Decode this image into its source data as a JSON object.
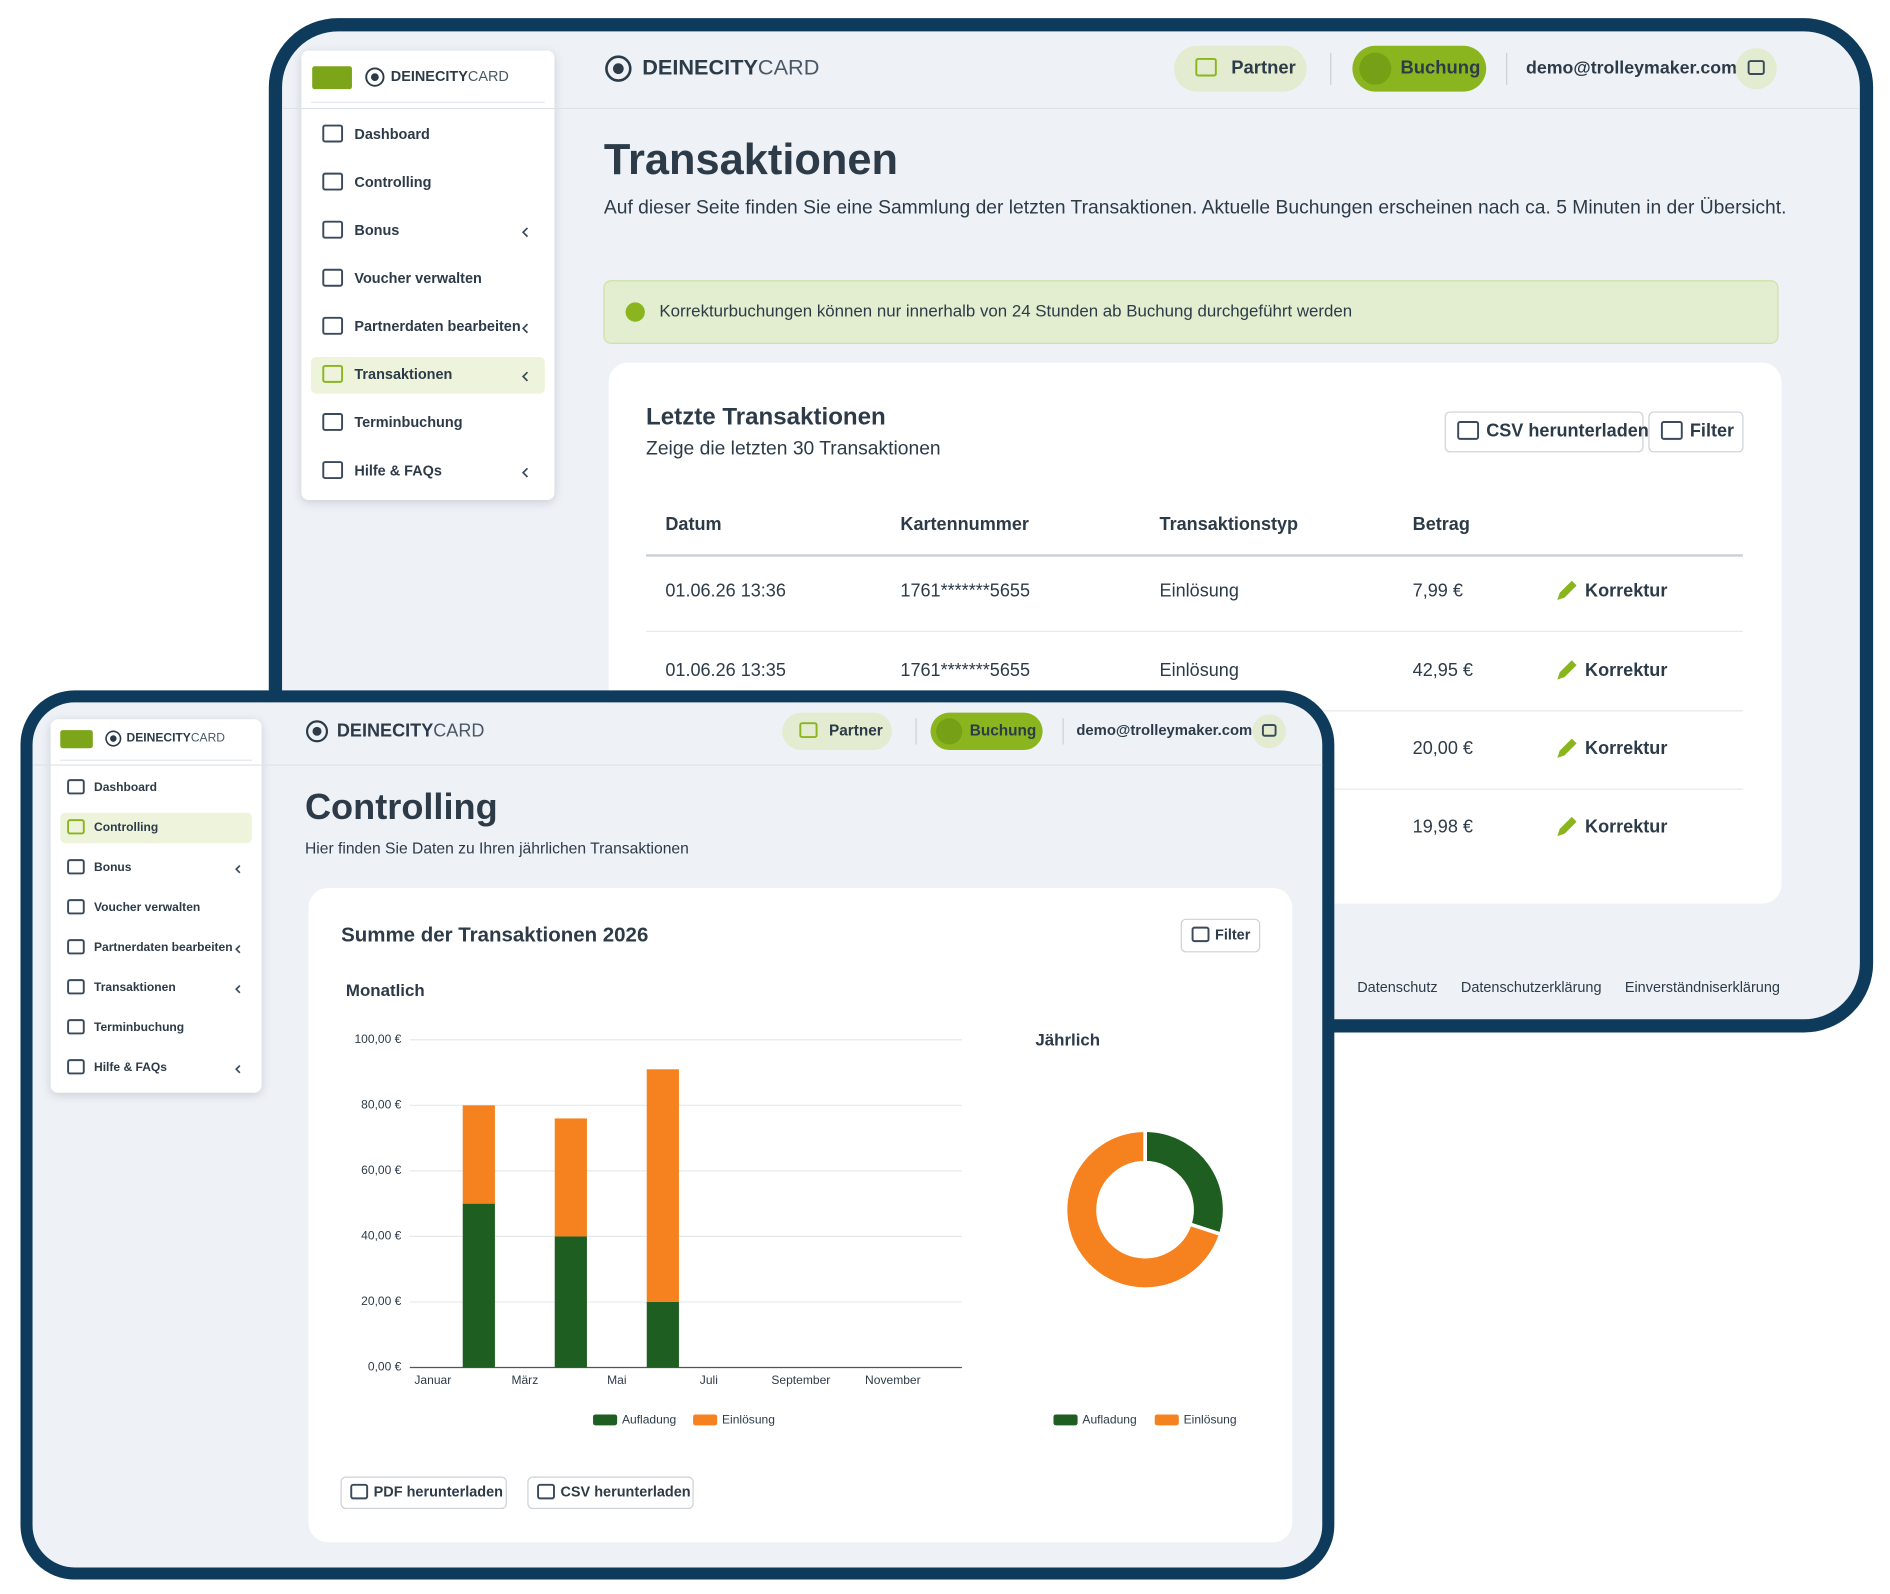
{
  "back": {
    "sidebar": {
      "brand": [
        "DEINECITY",
        "CARD"
      ],
      "items": [
        {
          "label": "Dashboard"
        },
        {
          "label": "Controlling"
        },
        {
          "label": "Bonus",
          "submenu": true
        },
        {
          "label": "Voucher verwalten"
        },
        {
          "label": "Partnerdaten bearbeiten",
          "submenu": true
        },
        {
          "label": "Transaktionen",
          "submenu": true
        },
        {
          "label": "Terminbuchung"
        },
        {
          "label": "Hilfe & FAQs",
          "submenu": true
        }
      ],
      "active": 5
    },
    "header": {
      "brand": [
        "DEINECITY",
        "CARD"
      ],
      "partner": "Partner",
      "booking": "Buchung",
      "email": "demo@trolleymaker.com"
    },
    "page": {
      "title": "Transaktionen",
      "description": "Auf dieser Seite finden Sie eine Sammlung der letzten Transaktionen. Aktuelle Buchungen erscheinen nach ca. 5 Minuten in der Übersicht."
    },
    "alert": "Korrekturbuchungen können nur innerhalb von 24 Stunden ab Buchung durchgeführt werden",
    "card": {
      "title": "Letzte Transaktionen",
      "subtitle": "Zeige die letzten 30 Transaktionen",
      "csv": "CSV herunterladen",
      "filter": "Filter"
    },
    "table": {
      "headers": [
        "Datum",
        "Kartennummer",
        "Transaktionstyp",
        "Betrag"
      ],
      "rows": [
        {
          "date": "01.06.26 13:36",
          "card": "1761*******5655",
          "type": "Einlösung",
          "amount": "7,99 €",
          "action": "Korrektur"
        },
        {
          "date": "01.06.26 13:35",
          "card": "1761*******5655",
          "type": "Einlösung",
          "amount": "42,95 €",
          "action": "Korrektur"
        },
        {
          "amount": "20,00 €",
          "action": "Korrektur"
        },
        {
          "amount": "19,98 €",
          "action": "Korrektur"
        }
      ]
    },
    "footer": [
      "Datenschutz",
      "Datenschutzerklärung",
      "Einverständniserklärung"
    ]
  },
  "front": {
    "sidebar": {
      "brand": [
        "DEINECITY",
        "CARD"
      ],
      "items": [
        {
          "label": "Dashboard"
        },
        {
          "label": "Controlling"
        },
        {
          "label": "Bonus",
          "submenu": true
        },
        {
          "label": "Voucher verwalten"
        },
        {
          "label": "Partnerdaten bearbeiten",
          "submenu": true
        },
        {
          "label": "Transaktionen",
          "submenu": true
        },
        {
          "label": "Terminbuchung"
        },
        {
          "label": "Hilfe & FAQs",
          "submenu": true
        }
      ],
      "active": 1
    },
    "header": {
      "brand": [
        "DEINECITY",
        "CARD"
      ],
      "partner": "Partner",
      "booking": "Buchung",
      "email": "demo@trolleymaker.com"
    },
    "page": {
      "title": "Controlling",
      "description": "Hier finden Sie Daten zu Ihren jährlichen Transaktionen"
    },
    "card": {
      "title": "Summe der Transaktionen 2026",
      "filter": "Filter",
      "pdf": "PDF herunterladen",
      "csv": "CSV herunterladen"
    }
  },
  "chart_data": [
    {
      "type": "bar",
      "title": "Monatlich",
      "stacked": true,
      "grid": true,
      "categories": [
        "Januar",
        null,
        "März",
        null,
        "Mai",
        null,
        "Juli",
        null,
        "September",
        null,
        "November",
        null
      ],
      "series": [
        {
          "name": "Aufladung",
          "color": "#1e5e20",
          "values": [
            null,
            50,
            null,
            40,
            null,
            20,
            null,
            null,
            null,
            null,
            null,
            null
          ]
        },
        {
          "name": "Einlösung",
          "color": "#f5821f",
          "values": [
            null,
            30,
            null,
            36,
            null,
            71,
            null,
            null,
            null,
            null,
            null,
            null
          ]
        }
      ],
      "ylim": [
        0,
        100
      ],
      "yticks": [
        {
          "value": 0,
          "label": "0,00 €"
        },
        {
          "value": 20,
          "label": "20,00 €"
        },
        {
          "value": 40,
          "label": "40,00 €"
        },
        {
          "value": 60,
          "label": "60,00 €"
        },
        {
          "value": 80,
          "label": "80,00 €"
        },
        {
          "value": 100,
          "label": "100,00 €"
        }
      ]
    },
    {
      "type": "pie",
      "title": "Jährlich",
      "categories": [
        "Aufladung",
        "Einlösung"
      ],
      "values": [
        30,
        70
      ],
      "colors": [
        "#1e5e20",
        "#f5821f"
      ]
    }
  ]
}
